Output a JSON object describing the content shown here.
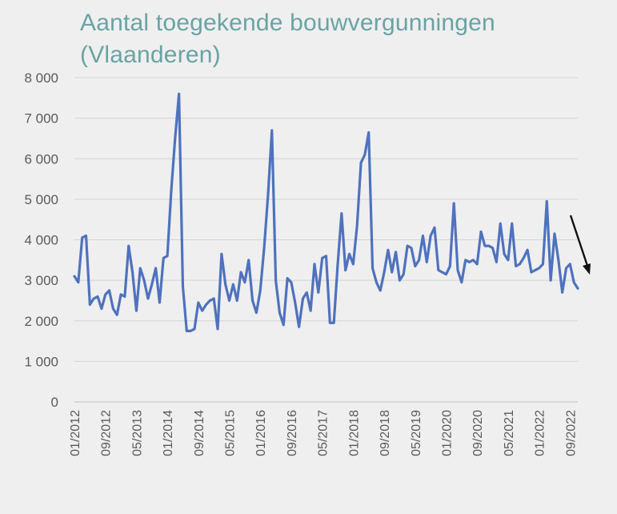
{
  "chart_data": {
    "type": "line",
    "title_lines": [
      "Aantal toegekende bouwvergunningen",
      "(Vlaanderen)"
    ],
    "xlabel": "",
    "ylabel": "",
    "ylim": [
      0,
      8000
    ],
    "y_ticks": [
      0,
      1000,
      2000,
      3000,
      4000,
      5000,
      6000,
      7000,
      8000
    ],
    "y_tick_labels": [
      "0",
      "1 000",
      "2 000",
      "3 000",
      "4 000",
      "5 000",
      "6 000",
      "7 000",
      "8 000"
    ],
    "x_tick_labels": [
      "01/2012",
      "09/2012",
      "05/2013",
      "01/2014",
      "09/2014",
      "05/2015",
      "01/2016",
      "09/2016",
      "05/2017",
      "01/2018",
      "09/2018",
      "05/2019",
      "01/2020",
      "09/2020",
      "05/2021",
      "01/2022",
      "09/2022"
    ],
    "x_start": "01/2012",
    "x_end": "11/2022",
    "grid": "horizontal",
    "line_color": "#4f72be",
    "annotation": "downward-arrow",
    "series": [
      {
        "values": [
          3100,
          2950,
          4050,
          4100,
          2400,
          2550,
          2600,
          2300,
          2650,
          2750,
          2300,
          2150,
          2650,
          2600,
          3850,
          3200,
          2250,
          3300,
          3000,
          2550,
          2900,
          3300,
          2450,
          3550,
          3600,
          5200,
          6500,
          7600,
          2850,
          1750,
          1750,
          1800,
          2450,
          2250,
          2400,
          2500,
          2550,
          1800,
          3650,
          2900,
          2500,
          2900,
          2500,
          3200,
          2950,
          3500,
          2500,
          2200,
          2750,
          3800,
          5100,
          6700,
          3000,
          2200,
          1900,
          3050,
          2950,
          2450,
          1850,
          2550,
          2700,
          2250,
          3400,
          2700,
          3550,
          3600,
          1950,
          1950,
          3400,
          4650,
          3250,
          3650,
          3400,
          4350,
          5900,
          6100,
          6650,
          3300,
          2950,
          2750,
          3200,
          3750,
          3200,
          3700,
          3000,
          3150,
          3850,
          3800,
          3350,
          3500,
          4100,
          3450,
          4100,
          4300,
          3250,
          3200,
          3150,
          3350,
          4900,
          3250,
          2950,
          3500,
          3450,
          3500,
          3400,
          4200,
          3850,
          3850,
          3800,
          3450,
          4400,
          3650,
          3500,
          4400,
          3350,
          3400,
          3550,
          3750,
          3200,
          3250,
          3300,
          3400,
          4950,
          3000,
          4150,
          3500,
          2700,
          3300,
          3400,
          2950,
          2800
        ]
      }
    ]
  }
}
